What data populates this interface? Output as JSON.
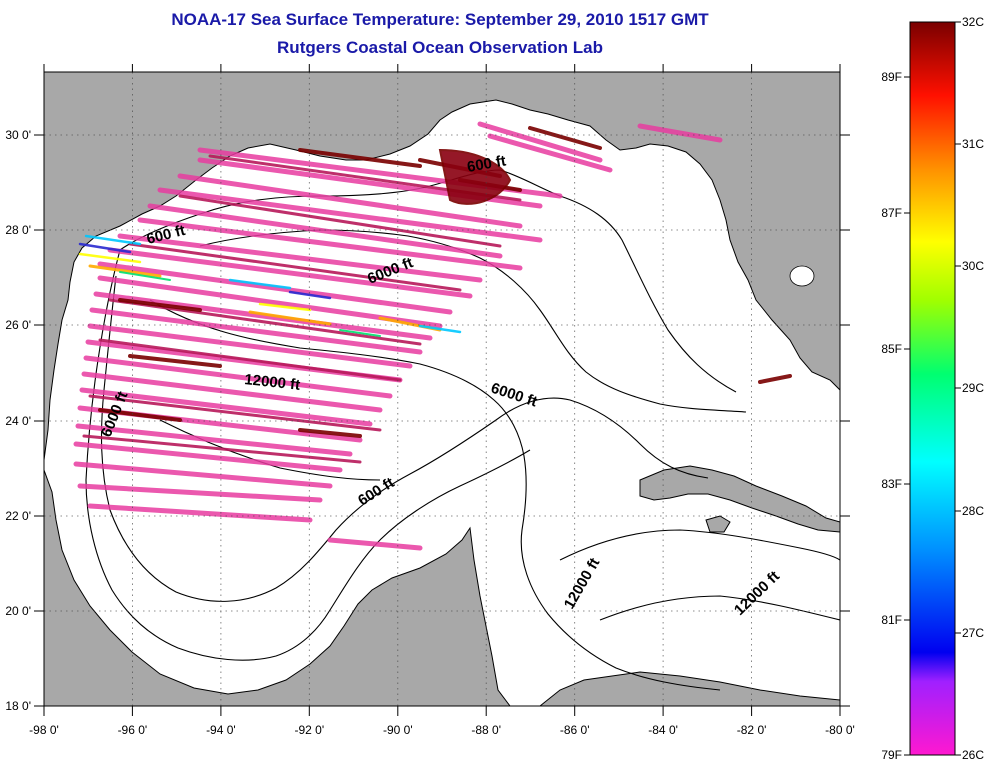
{
  "title": "NOAA-17 Sea Surface Temperature:  September 29, 2010 1517 GMT",
  "subtitle": "Rutgers Coastal Ocean Observation Lab",
  "map": {
    "lon_ticks": [
      "-98 0'",
      "-96 0'",
      "-94 0'",
      "-92 0'",
      "-90 0'",
      "-88 0'",
      "-86 0'",
      "-84 0'",
      "-82 0'",
      "-80 0'"
    ],
    "lat_ticks": [
      "18 0'",
      "20 0'",
      "22 0'",
      "24 0'",
      "26 0'",
      "28 0'",
      "30 0'"
    ],
    "lon_range": [
      -98,
      -80
    ],
    "lat_range": [
      18,
      31
    ],
    "land_color": "#a8a8a8",
    "water_color": "#ffffff",
    "contour_labels": [
      "600 ft",
      "600 ft",
      "600 ft",
      "6000 ft",
      "6000 ft",
      "6000 ft",
      "12000 ft",
      "12000 ft",
      "12000 ft"
    ]
  },
  "colorbar": {
    "celsius_labels": [
      "32C",
      "31C",
      "30C",
      "29C",
      "28C",
      "27C",
      "26C"
    ],
    "fahrenheit_labels": [
      "89F",
      "87F",
      "85F",
      "83F",
      "81F",
      "79F"
    ],
    "range_c": [
      26,
      32
    ],
    "colors": [
      "#ff00cc",
      "#7a00ff",
      "#0000ff",
      "#00a0ff",
      "#00ffff",
      "#00ff80",
      "#80ff00",
      "#ffff00",
      "#ffa000",
      "#ff4000",
      "#ff0000",
      "#800000"
    ]
  }
}
